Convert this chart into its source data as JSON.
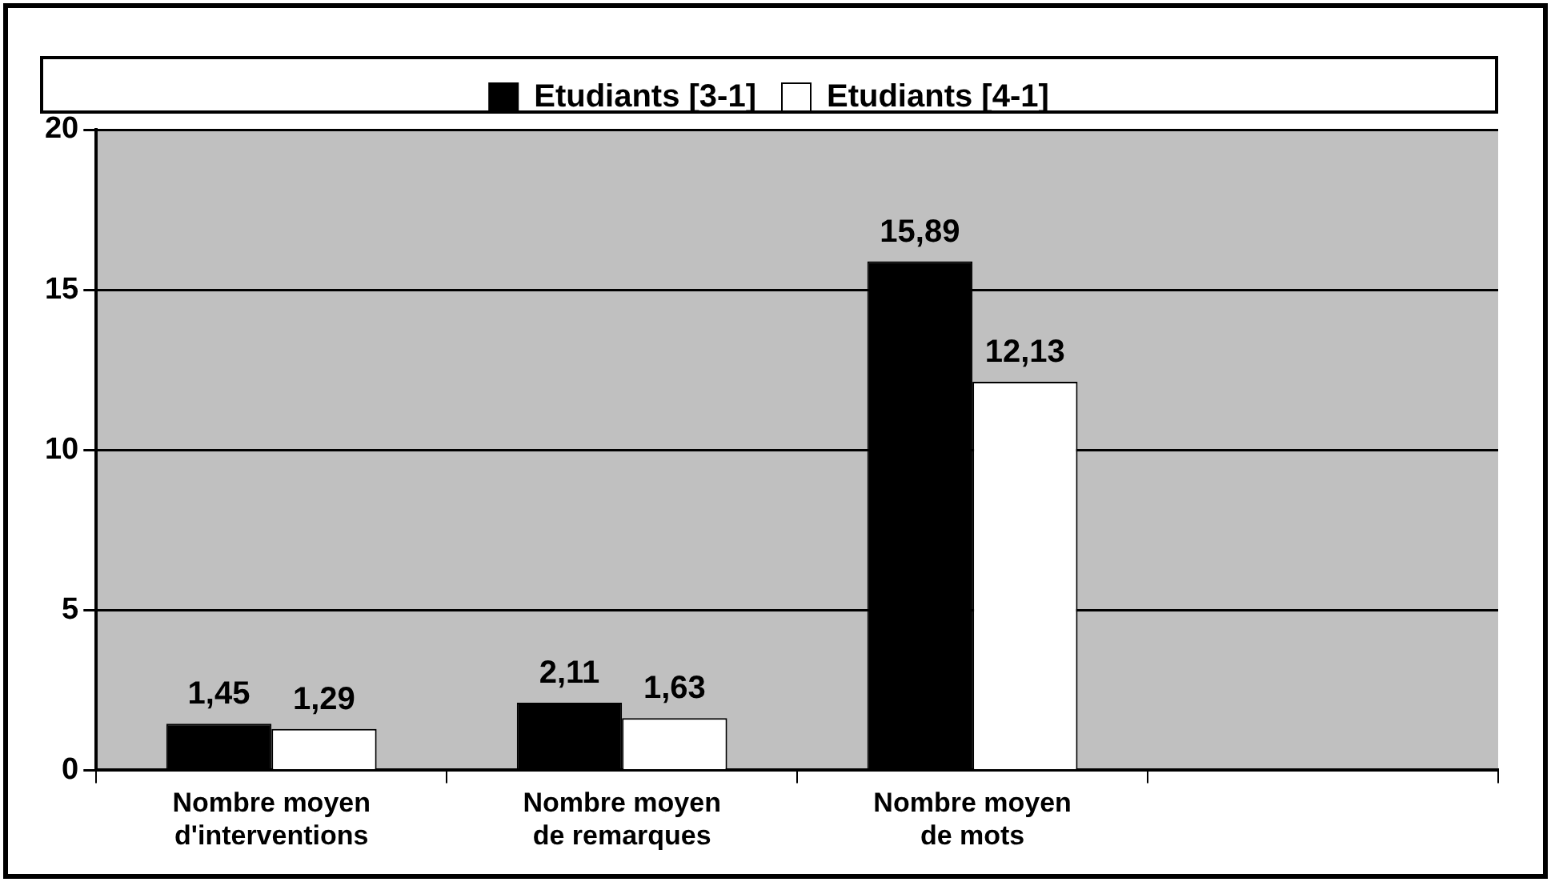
{
  "chart_data": {
    "type": "bar",
    "categories": [
      "Nombre moyen\nd'interventions",
      "Nombre moyen\nde remarques",
      "Nombre moyen\nde mots",
      null
    ],
    "series": [
      {
        "name": "Etudiants [3-1]",
        "color": "#000000",
        "values": [
          1.45,
          2.11,
          15.89,
          null
        ],
        "value_labels": [
          "1,45",
          "2,11",
          "15,89",
          null
        ]
      },
      {
        "name": "Etudiants [4-1]",
        "color": "#ffffff",
        "values": [
          1.29,
          1.63,
          12.13,
          null
        ],
        "value_labels": [
          "1,29",
          "1,63",
          "12,13",
          null
        ]
      }
    ],
    "ylim": [
      0,
      20
    ],
    "yticks": [
      0,
      5,
      10,
      15,
      20
    ],
    "grid": "y",
    "legend": "top"
  }
}
